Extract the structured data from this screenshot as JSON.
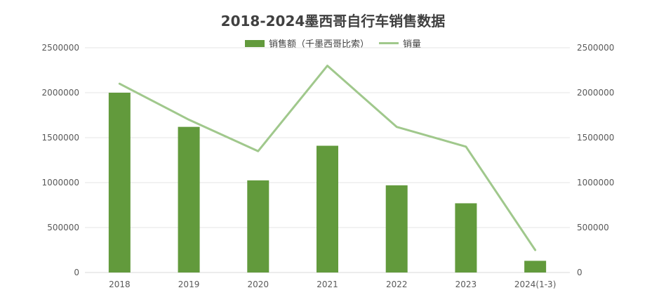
{
  "chart_data": {
    "type": "bar",
    "title": "2018-2024墨西哥自行车销售数据",
    "categories": [
      "2018",
      "2019",
      "2020",
      "2021",
      "2022",
      "2023",
      "2024(1-3)"
    ],
    "series": [
      {
        "name": "销售额（千墨西哥比索）",
        "type": "bar",
        "axis": "left",
        "color": "#629a3c",
        "values": [
          2000000,
          1620000,
          1025000,
          1410000,
          970000,
          770000,
          130000
        ]
      },
      {
        "name": "销量",
        "type": "line",
        "axis": "right",
        "color": "#a0c88c",
        "values": [
          2100000,
          1700000,
          1350000,
          2300000,
          1620000,
          1400000,
          250000
        ]
      }
    ],
    "ylim": [
      0,
      2500000
    ],
    "y2lim": [
      0,
      2500000
    ],
    "yticks": [
      "0",
      "500000",
      "1000000",
      "1500000",
      "2000000",
      "2500000"
    ],
    "grid": true,
    "legend_position": "top-center"
  }
}
